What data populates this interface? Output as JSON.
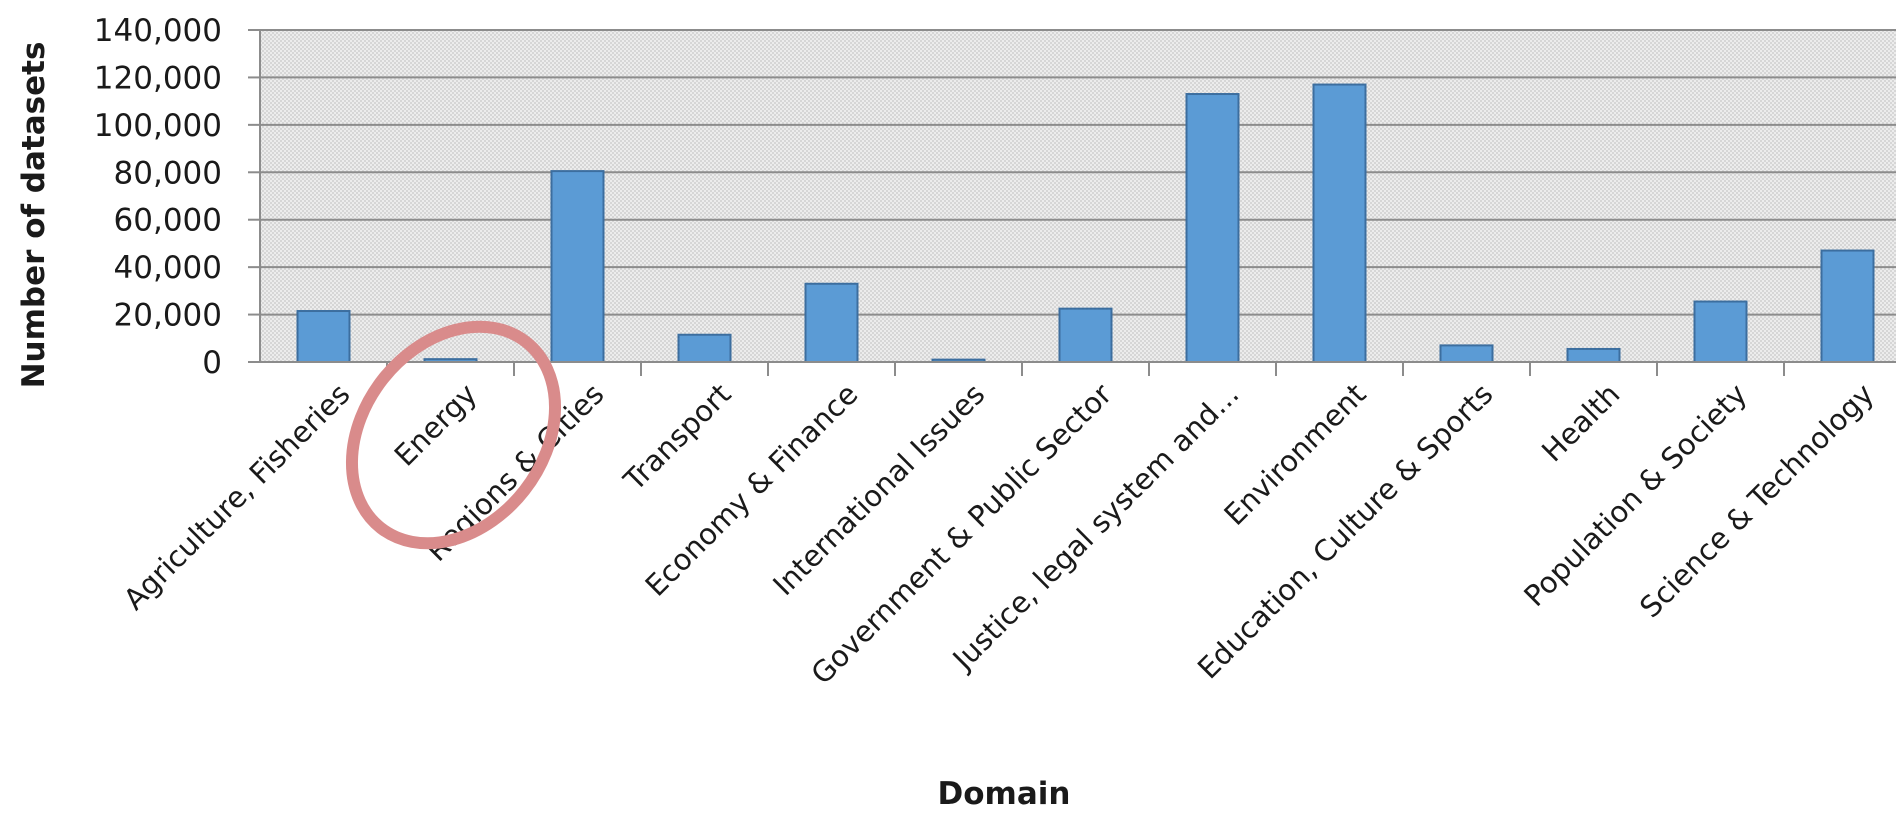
{
  "chart_data": {
    "type": "bar",
    "title": "",
    "xlabel": "Domain",
    "ylabel": "Number of datasets",
    "ylim": [
      0,
      140000
    ],
    "yticks": [
      0,
      20000,
      40000,
      60000,
      80000,
      100000,
      120000,
      140000
    ],
    "ytick_labels": [
      "0",
      "20,000",
      "40,000",
      "60,000",
      "80,000",
      "100,000",
      "120,000",
      "140,000"
    ],
    "grid": true,
    "legend": "none",
    "categories": [
      "Agriculture, Fisheries",
      "Energy",
      "Regions & Cities",
      "Transport",
      "Economy & Finance",
      "International Issues",
      "Government & Public Sector",
      "Justice, legal system and...",
      "Environment",
      "Education, Culture & Sports",
      "Health",
      "Population & Society",
      "Science & Technology"
    ],
    "values": [
      21500,
      1200,
      80500,
      11500,
      33000,
      1000,
      22500,
      113000,
      117000,
      7000,
      5500,
      25500,
      47000
    ],
    "bar_color": "#5b9bd5",
    "bar_edge_color": "#3c6e9f",
    "annotation": {
      "type": "circle",
      "target_category": "Energy",
      "color": "#d98b8b"
    }
  }
}
